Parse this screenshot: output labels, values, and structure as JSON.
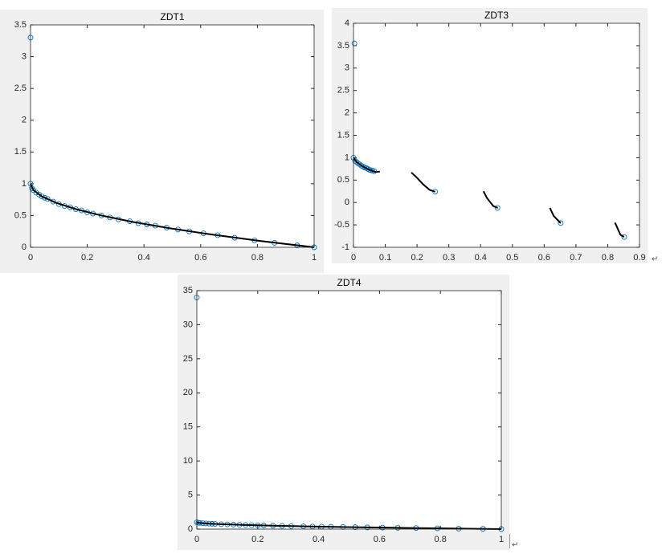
{
  "chart_data": [
    {
      "type": "scatter",
      "title": "ZDT1",
      "xlim": [
        0,
        1
      ],
      "xticks": [
        0,
        0.2,
        0.4,
        0.6,
        0.8,
        1
      ],
      "ylim": [
        0,
        3.5
      ],
      "yticks": [
        0,
        0.5,
        1,
        1.5,
        2,
        2.5,
        3,
        3.5
      ],
      "series": [
        {
          "mode": "markers",
          "color": "#0072bd",
          "x": [
            0,
            0,
            0.005,
            0.01,
            0.02,
            0.03,
            0.04,
            0.05,
            0.06,
            0.08,
            0.1,
            0.12,
            0.14,
            0.16,
            0.18,
            0.2,
            0.22,
            0.25,
            0.28,
            0.31,
            0.35,
            0.38,
            0.41,
            0.44,
            0.48,
            0.52,
            0.56,
            0.61,
            0.66,
            0.72,
            0.79,
            0.86,
            0.94,
            1
          ],
          "values": [
            3.3,
            1,
            0.93,
            0.9,
            0.86,
            0.83,
            0.8,
            0.78,
            0.76,
            0.72,
            0.68,
            0.65,
            0.63,
            0.6,
            0.58,
            0.55,
            0.53,
            0.5,
            0.47,
            0.44,
            0.41,
            0.38,
            0.36,
            0.34,
            0.31,
            0.28,
            0.25,
            0.22,
            0.19,
            0.15,
            0.11,
            0.07,
            0.03,
            0
          ]
        },
        {
          "mode": "line",
          "color": "#000000",
          "x": [
            0,
            0.01,
            0.04,
            0.09,
            0.16,
            0.25,
            0.36,
            0.49,
            0.64,
            0.81,
            1
          ],
          "values": [
            1,
            0.9,
            0.8,
            0.7,
            0.6,
            0.5,
            0.4,
            0.3,
            0.2,
            0.1,
            0
          ]
        }
      ]
    },
    {
      "type": "scatter",
      "title": "ZDT3",
      "xlim": [
        0,
        0.9
      ],
      "xticks": [
        0,
        0.1,
        0.2,
        0.3,
        0.4,
        0.5,
        0.6,
        0.7,
        0.8,
        0.9
      ],
      "ylim": [
        -1,
        4
      ],
      "yticks": [
        -1,
        -0.5,
        0,
        0.5,
        1,
        1.5,
        2,
        2.5,
        3,
        3.5,
        4
      ],
      "series": [
        {
          "mode": "markers",
          "color": "#0072bd",
          "x": [
            0.003,
            0,
            0.005,
            0.01,
            0.015,
            0.02,
            0.025,
            0.03,
            0.035,
            0.04,
            0.045,
            0.05,
            0.055,
            0.06,
            0.065,
            0.257,
            0.453,
            0.652,
            0.852
          ],
          "values": [
            3.55,
            1,
            0.93,
            0.9,
            0.87,
            0.85,
            0.82,
            0.8,
            0.78,
            0.77,
            0.75,
            0.73,
            0.72,
            0.71,
            0.7,
            0.24,
            -0.12,
            -0.46,
            -0.77
          ]
        },
        {
          "mode": "line",
          "color": "#000000",
          "x": [
            0,
            0.01,
            0.03,
            0.05,
            0.07,
            0.083,
            null,
            0.182,
            0.2,
            0.22,
            0.24,
            0.257,
            null,
            0.409,
            0.42,
            0.44,
            0.454,
            null,
            0.618,
            0.63,
            0.652,
            null,
            0.823,
            0.84,
            0.852
          ],
          "values": [
            1,
            0.9,
            0.8,
            0.73,
            0.68,
            0.69,
            null,
            0.67,
            0.55,
            0.4,
            0.28,
            0.24,
            null,
            0.25,
            0.1,
            -0.08,
            -0.12,
            null,
            -0.12,
            -0.3,
            -0.46,
            null,
            -0.45,
            -0.72,
            -0.77
          ]
        }
      ]
    },
    {
      "type": "scatter",
      "title": "ZDT4",
      "xlim": [
        0,
        1
      ],
      "xticks": [
        0,
        0.2,
        0.4,
        0.6,
        0.8,
        1
      ],
      "ylim": [
        0,
        35
      ],
      "yticks": [
        0,
        5,
        10,
        15,
        20,
        25,
        30,
        35
      ],
      "series": [
        {
          "mode": "markers",
          "color": "#0072bd",
          "x": [
            0,
            0,
            0.005,
            0.01,
            0.02,
            0.03,
            0.04,
            0.05,
            0.06,
            0.08,
            0.1,
            0.12,
            0.14,
            0.16,
            0.18,
            0.2,
            0.22,
            0.25,
            0.28,
            0.31,
            0.35,
            0.38,
            0.41,
            0.44,
            0.48,
            0.52,
            0.56,
            0.61,
            0.66,
            0.72,
            0.79,
            0.86,
            0.94,
            1
          ],
          "values": [
            34,
            1,
            0.93,
            0.9,
            0.86,
            0.83,
            0.8,
            0.78,
            0.76,
            0.72,
            0.68,
            0.65,
            0.63,
            0.6,
            0.58,
            0.55,
            0.53,
            0.5,
            0.47,
            0.44,
            0.41,
            0.38,
            0.36,
            0.34,
            0.31,
            0.28,
            0.25,
            0.22,
            0.19,
            0.15,
            0.11,
            0.07,
            0.03,
            0
          ]
        },
        {
          "mode": "line",
          "color": "#000000",
          "x": [
            0,
            0.01,
            0.04,
            0.09,
            0.16,
            0.25,
            0.36,
            0.49,
            0.64,
            0.81,
            1
          ],
          "values": [
            1,
            0.9,
            0.8,
            0.7,
            0.6,
            0.5,
            0.4,
            0.3,
            0.2,
            0.1,
            0
          ]
        }
      ]
    }
  ],
  "paragraph_marks": [
    "↵",
    "↵"
  ]
}
